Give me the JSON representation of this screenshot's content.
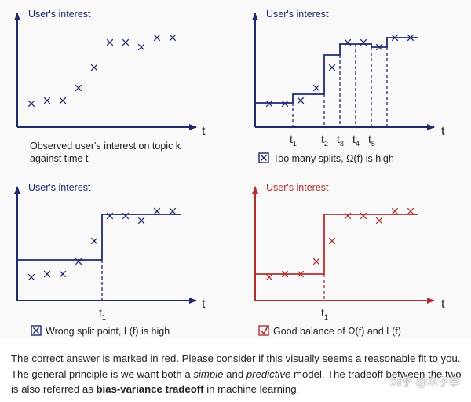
{
  "panels": [
    {
      "id": "observed",
      "title": "User's interest",
      "x_label": "t",
      "caption_lines": [
        "Observed user's interest on topic k",
        "against time t"
      ],
      "points": [
        [
          1,
          1
        ],
        [
          2,
          1.2
        ],
        [
          3,
          1.2
        ],
        [
          4,
          2
        ],
        [
          5,
          3.3
        ],
        [
          6,
          4.9
        ],
        [
          7,
          4.9
        ],
        [
          8,
          4.6
        ],
        [
          9,
          5.2
        ],
        [
          10,
          5.2
        ]
      ]
    },
    {
      "id": "many-splits",
      "title": "User's interest",
      "x_label": "t",
      "ticks": [
        "t1",
        "t2",
        "t3",
        "t4",
        "t5"
      ],
      "caption": "Too many splits, Ω(f) is high",
      "points": [
        [
          1,
          1
        ],
        [
          2,
          1
        ],
        [
          3,
          1.2
        ],
        [
          4,
          2
        ],
        [
          5,
          3.3
        ],
        [
          6,
          4.9
        ],
        [
          7,
          4.9
        ],
        [
          8,
          4.6
        ],
        [
          9,
          5.2
        ],
        [
          10,
          5.2
        ]
      ],
      "steps": [
        [
          0,
          1.05
        ],
        [
          2.5,
          1.6
        ],
        [
          4.5,
          4.1
        ],
        [
          5.5,
          4.8
        ],
        [
          6.5,
          4.8
        ],
        [
          7.5,
          4.6
        ],
        [
          8.5,
          5.2
        ],
        [
          10.5,
          5.2
        ]
      ]
    },
    {
      "id": "wrong-split",
      "title": "User's interest",
      "x_label": "t",
      "ticks": [
        "t1"
      ],
      "caption": "Wrong split point, L(f) is high",
      "points": [
        [
          1,
          1
        ],
        [
          2,
          1.2
        ],
        [
          3,
          1.2
        ],
        [
          4,
          2
        ],
        [
          5,
          3.3
        ],
        [
          6,
          4.9
        ],
        [
          7,
          4.9
        ],
        [
          8,
          4.6
        ],
        [
          9,
          5.2
        ],
        [
          10,
          5.2
        ]
      ],
      "steps": [
        [
          0,
          2.1
        ],
        [
          5.5,
          5.0
        ],
        [
          10.5,
          5.0
        ]
      ]
    },
    {
      "id": "good-balance",
      "title": "User's interest",
      "x_label": "t",
      "ticks": [
        "t1"
      ],
      "caption": "Good balance of Ω(f) and L(f)",
      "points": [
        [
          1,
          1
        ],
        [
          2,
          1.2
        ],
        [
          3,
          1.2
        ],
        [
          4,
          2
        ],
        [
          5,
          3.3
        ],
        [
          6,
          4.9
        ],
        [
          7,
          4.9
        ],
        [
          8,
          4.6
        ],
        [
          9,
          5.2
        ],
        [
          10,
          5.2
        ]
      ],
      "steps": [
        [
          0,
          1.2
        ],
        [
          4.5,
          5.0
        ],
        [
          10.5,
          5.0
        ]
      ]
    }
  ],
  "colors": {
    "blue": "#1f2a6b",
    "red": "#b03030"
  },
  "text": {
    "line1": "The correct answer is marked in red. Please consider if this visually seems a reasonable fit to you.",
    "line2_a": "The general principle is we want both a ",
    "line2_b": "simple",
    "line2_c": " and ",
    "line2_d": "predictive",
    "line2_e": " model. The tradeoff between the two",
    "line3_a": "is also referred as ",
    "line3_b": "bias-variance tradeoff",
    "line3_c": " in machine learning."
  },
  "watermark": "知乎 @木子李"
}
